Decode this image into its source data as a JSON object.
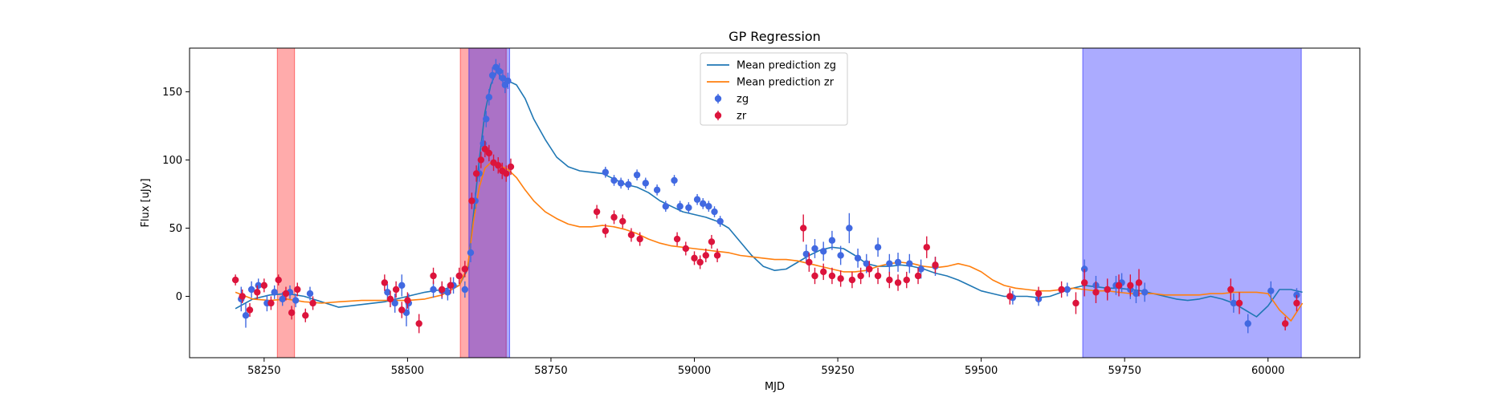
{
  "chart_data": {
    "type": "scatter",
    "title": "GP Regression",
    "xlabel": "MJD",
    "ylabel": "Flux [uJy]",
    "xlim": [
      58120,
      60160
    ],
    "ylim": [
      -45,
      182
    ],
    "xticks": [
      58250,
      58500,
      58750,
      59000,
      59250,
      59500,
      59750,
      60000
    ],
    "yticks": [
      0,
      50,
      100,
      150
    ],
    "grid": false,
    "legend_position": "top-center",
    "spans": [
      {
        "x0": 58273,
        "x1": 58303,
        "color": "#ff0000",
        "opacity": 0.33
      },
      {
        "x0": 58592,
        "x1": 58672,
        "color": "#ff0000",
        "opacity": 0.33
      },
      {
        "x0": 58607,
        "x1": 58678,
        "color": "#0000ff",
        "opacity": 0.33
      },
      {
        "x0": 59677,
        "x1": 60058,
        "color": "#0000ff",
        "opacity": 0.33
      }
    ],
    "series": [
      {
        "name": "Mean prediction zg",
        "kind": "line",
        "color": "#1f77b4",
        "x": [
          58200,
          58230,
          58260,
          58290,
          58320,
          58350,
          58380,
          58420,
          58460,
          58500,
          58530,
          58560,
          58590,
          58605,
          58615,
          58625,
          58635,
          58645,
          58655,
          58665,
          58675,
          58690,
          58705,
          58720,
          58740,
          58760,
          58780,
          58800,
          58820,
          58840,
          58860,
          58880,
          58900,
          58920,
          58940,
          58960,
          58980,
          59000,
          59020,
          59040,
          59060,
          59080,
          59100,
          59120,
          59140,
          59160,
          59180,
          59200,
          59220,
          59240,
          59260,
          59280,
          59300,
          59320,
          59340,
          59360,
          59380,
          59400,
          59420,
          59440,
          59460,
          59480,
          59500,
          59520,
          59540,
          59560,
          59580,
          59600,
          59620,
          59640,
          59660,
          59680,
          59700,
          59720,
          59740,
          59760,
          59780,
          59800,
          59820,
          59840,
          59860,
          59880,
          59900,
          59920,
          59940,
          59960,
          59980,
          60000,
          60020,
          60040,
          60060
        ],
        "y": [
          -9,
          -2,
          1,
          2,
          0,
          -4,
          -8,
          -6,
          -4,
          0,
          3,
          5,
          8,
          20,
          60,
          100,
          135,
          155,
          165,
          160,
          158,
          155,
          145,
          130,
          115,
          102,
          95,
          92,
          91,
          90,
          86,
          82,
          80,
          76,
          70,
          66,
          62,
          60,
          58,
          55,
          50,
          40,
          30,
          22,
          19,
          20,
          25,
          30,
          34,
          36,
          35,
          30,
          24,
          22,
          22,
          23,
          22,
          20,
          17,
          15,
          12,
          8,
          4,
          2,
          0,
          0,
          0,
          -1,
          0,
          3,
          6,
          8,
          7,
          6,
          6,
          5,
          4,
          2,
          0,
          -2,
          -3,
          -2,
          0,
          -2,
          -5,
          -10,
          -15,
          -7,
          5,
          5,
          3
        ]
      },
      {
        "name": "Mean prediction zr",
        "kind": "line",
        "color": "#ff7f0e",
        "x": [
          58200,
          58230,
          58260,
          58290,
          58320,
          58350,
          58380,
          58420,
          58460,
          58500,
          58530,
          58560,
          58590,
          58605,
          58615,
          58625,
          58635,
          58645,
          58655,
          58665,
          58675,
          58690,
          58705,
          58720,
          58740,
          58760,
          58780,
          58800,
          58820,
          58840,
          58860,
          58880,
          58900,
          58920,
          58940,
          58960,
          58980,
          59000,
          59020,
          59040,
          59060,
          59080,
          59100,
          59120,
          59140,
          59160,
          59180,
          59200,
          59220,
          59240,
          59260,
          59280,
          59300,
          59320,
          59340,
          59360,
          59380,
          59400,
          59420,
          59440,
          59460,
          59480,
          59500,
          59520,
          59540,
          59560,
          59580,
          59600,
          59620,
          59640,
          59660,
          59680,
          59700,
          59720,
          59740,
          59760,
          59780,
          59800,
          59820,
          59840,
          59860,
          59880,
          59900,
          59920,
          59940,
          59960,
          59980,
          60000,
          60020,
          60040,
          60060
        ],
        "y": [
          3,
          -2,
          -3,
          -2,
          -4,
          -5,
          -4,
          -3,
          -3,
          -3,
          -2,
          1,
          8,
          22,
          55,
          80,
          94,
          98,
          97,
          95,
          93,
          87,
          78,
          70,
          62,
          57,
          53,
          51,
          51,
          52,
          51,
          49,
          46,
          42,
          39,
          37,
          36,
          35,
          34,
          33,
          32,
          30,
          29,
          28,
          27,
          27,
          26,
          24,
          22,
          20,
          18,
          18,
          19,
          22,
          24,
          25,
          24,
          22,
          21,
          22,
          24,
          22,
          18,
          12,
          8,
          6,
          5,
          4,
          4,
          5,
          6,
          5,
          4,
          4,
          3,
          2,
          2,
          2,
          1,
          1,
          1,
          1,
          2,
          2,
          3,
          3,
          3,
          2,
          -10,
          -18,
          -5
        ]
      },
      {
        "name": "zg",
        "kind": "scatter",
        "color": "#4169e1",
        "x": [
          58210,
          58218,
          58228,
          58240,
          58255,
          58268,
          58282,
          58295,
          58305,
          58330,
          58465,
          58478,
          58490,
          58498,
          58502,
          58545,
          58560,
          58570,
          58580,
          58600,
          58610,
          58618,
          58625,
          58632,
          58637,
          58642,
          58648,
          58654,
          58660,
          58666,
          58670,
          58675,
          58845,
          58860,
          58872,
          58885,
          58900,
          58915,
          58935,
          58950,
          58965,
          58975,
          58990,
          59005,
          59015,
          59025,
          59035,
          59045,
          59195,
          59210,
          59225,
          59240,
          59255,
          59270,
          59285,
          59300,
          59320,
          59340,
          59355,
          59375,
          59395,
          59420,
          59555,
          59600,
          59650,
          59680,
          59700,
          59720,
          59735,
          59745,
          59760,
          59770,
          59785,
          59940,
          59965,
          60005,
          60050
        ],
        "y": [
          -2,
          -14,
          5,
          8,
          -5,
          3,
          -2,
          3,
          -3,
          2,
          3,
          -5,
          8,
          -12,
          -5,
          5,
          4,
          3,
          8,
          5,
          32,
          70,
          90,
          112,
          130,
          146,
          162,
          168,
          165,
          160,
          155,
          158,
          91,
          85,
          83,
          82,
          89,
          83,
          78,
          66,
          85,
          66,
          65,
          71,
          68,
          66,
          62,
          55,
          31,
          35,
          33,
          41,
          30,
          50,
          28,
          24,
          36,
          24,
          25,
          24,
          20,
          22,
          -1,
          -2,
          5,
          20,
          8,
          5,
          8,
          10,
          5,
          2,
          3,
          -5,
          -20,
          4,
          1
        ],
        "errors": [
          9,
          9,
          6,
          5,
          6,
          5,
          5,
          5,
          5,
          5,
          6,
          7,
          8,
          10,
          7,
          6,
          6,
          6,
          6,
          6,
          7,
          6,
          6,
          6,
          6,
          6,
          6,
          6,
          6,
          6,
          6,
          6,
          4,
          4,
          4,
          4,
          4,
          4,
          4,
          4,
          4,
          4,
          4,
          4,
          4,
          4,
          4,
          4,
          7,
          7,
          7,
          7,
          7,
          11,
          7,
          7,
          7,
          7,
          7,
          7,
          7,
          7,
          5,
          5,
          5,
          7,
          7,
          7,
          7,
          7,
          7,
          7,
          7,
          7,
          7,
          7,
          5
        ]
      },
      {
        "name": "zr",
        "kind": "scatter",
        "color": "#dc143c",
        "x": [
          58200,
          58212,
          58225,
          58238,
          58250,
          58262,
          58275,
          58288,
          58298,
          58308,
          58322,
          58335,
          58460,
          58470,
          58480,
          58490,
          58500,
          58520,
          58545,
          58560,
          58575,
          58590,
          58600,
          58612,
          58620,
          58628,
          58635,
          58642,
          58650,
          58658,
          58665,
          58672,
          58680,
          58830,
          58845,
          58860,
          58875,
          58890,
          58905,
          58970,
          58985,
          59000,
          59010,
          59020,
          59030,
          59040,
          59190,
          59200,
          59210,
          59225,
          59240,
          59255,
          59275,
          59290,
          59305,
          59320,
          59340,
          59355,
          59370,
          59390,
          59405,
          59420,
          59550,
          59600,
          59640,
          59665,
          59680,
          59700,
          59720,
          59740,
          59760,
          59775,
          59935,
          59950,
          60030,
          60050
        ],
        "y": [
          12,
          0,
          -10,
          3,
          8,
          -5,
          12,
          2,
          -12,
          5,
          -14,
          -5,
          10,
          -2,
          5,
          -10,
          -3,
          -20,
          15,
          5,
          8,
          15,
          20,
          70,
          90,
          100,
          108,
          105,
          98,
          96,
          92,
          90,
          95,
          62,
          48,
          58,
          55,
          45,
          42,
          42,
          35,
          28,
          25,
          30,
          40,
          30,
          50,
          25,
          15,
          18,
          15,
          13,
          12,
          15,
          20,
          15,
          12,
          10,
          12,
          15,
          36,
          23,
          0,
          2,
          5,
          -5,
          10,
          3,
          5,
          8,
          8,
          10,
          5,
          -5,
          -20,
          -5
        ],
        "errors": [
          4,
          5,
          5,
          5,
          5,
          5,
          4,
          5,
          5,
          5,
          5,
          5,
          6,
          6,
          6,
          6,
          6,
          7,
          6,
          6,
          6,
          6,
          6,
          6,
          6,
          6,
          6,
          6,
          6,
          6,
          6,
          6,
          6,
          5,
          5,
          5,
          5,
          5,
          5,
          5,
          5,
          5,
          5,
          5,
          5,
          5,
          10,
          7,
          6,
          6,
          6,
          6,
          6,
          6,
          6,
          6,
          6,
          6,
          6,
          6,
          8,
          6,
          6,
          5,
          6,
          8,
          10,
          8,
          8,
          8,
          8,
          10,
          8,
          8,
          5,
          6
        ]
      }
    ]
  }
}
